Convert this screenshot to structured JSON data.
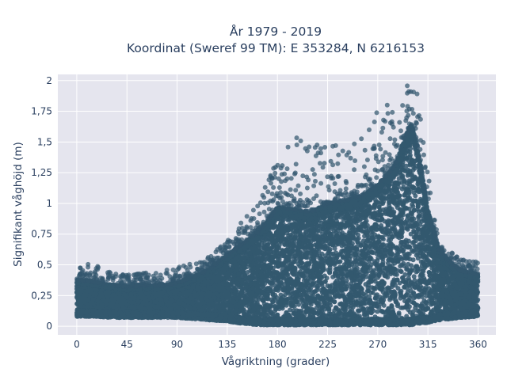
{
  "chart_data": {
    "type": "scatter",
    "title_line1": "År 1979 - 2019",
    "title_line2": "Koordinat (Sweref 99 TM): E 353284, N 6216153",
    "xlabel": "Vågriktning (grader)",
    "ylabel": "Signifikant våghöjd (m)",
    "xlim": [
      -17,
      376
    ],
    "ylim": [
      -0.07,
      2.05
    ],
    "x_ticks": [
      0,
      45,
      90,
      135,
      180,
      225,
      270,
      315,
      360
    ],
    "x_tick_labels": [
      "0",
      "45",
      "90",
      "135",
      "180",
      "225",
      "270",
      "315",
      "360"
    ],
    "y_ticks": [
      0,
      0.25,
      0.5,
      0.75,
      1,
      1.25,
      1.5,
      1.75,
      2
    ],
    "y_tick_labels": [
      "0",
      "0,25",
      "0,5",
      "0,75",
      "1",
      "1,25",
      "1,5",
      "1,75",
      "2"
    ],
    "grid": true,
    "marker_color": "#33586f",
    "background_color": "#e5e5ee",
    "envelope": {
      "direction": [
        0,
        15,
        30,
        45,
        60,
        75,
        90,
        105,
        120,
        135,
        150,
        165,
        180,
        195,
        210,
        225,
        240,
        255,
        270,
        285,
        295,
        300,
        305,
        315,
        325,
        335,
        345,
        360
      ],
      "dense_min": [
        0.08,
        0.08,
        0.07,
        0.07,
        0.07,
        0.07,
        0.07,
        0.06,
        0.05,
        0.04,
        0.02,
        0.01,
        0.01,
        0.01,
        0.01,
        0.01,
        0.01,
        0.01,
        0.01,
        0.01,
        0.01,
        0.01,
        0.02,
        0.03,
        0.05,
        0.06,
        0.07,
        0.08
      ],
      "dense_max": [
        0.38,
        0.36,
        0.34,
        0.32,
        0.33,
        0.33,
        0.35,
        0.4,
        0.47,
        0.58,
        0.68,
        0.78,
        0.97,
        0.95,
        0.93,
        1.0,
        1.02,
        1.06,
        1.15,
        1.3,
        1.55,
        1.65,
        1.5,
        0.95,
        0.62,
        0.52,
        0.45,
        0.42
      ],
      "outlier_max": [
        0.48,
        0.53,
        0.45,
        0.42,
        0.44,
        0.45,
        0.48,
        0.52,
        0.58,
        0.7,
        0.88,
        1.05,
        1.38,
        1.55,
        1.55,
        1.52,
        1.53,
        1.58,
        1.75,
        1.9,
        1.97,
        1.95,
        1.92,
        1.25,
        0.72,
        0.62,
        0.56,
        0.52
      ]
    }
  }
}
